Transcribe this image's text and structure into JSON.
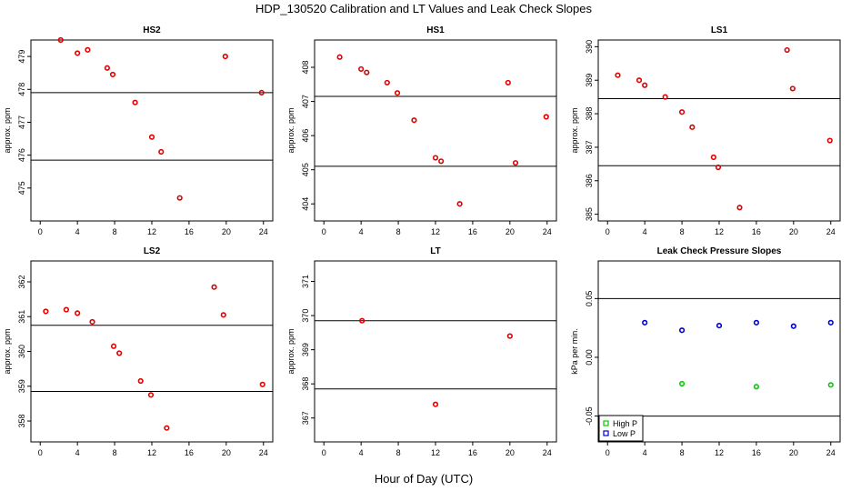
{
  "figure": {
    "title": "HDP_130520  Calibration and LT Values and Leak Check Slopes",
    "xlabel": "Hour of Day (UTC)"
  },
  "chart_data": [
    {
      "id": "hs2",
      "type": "scatter",
      "title": "HS2",
      "ylabel": "approx. ppm",
      "xlim": [
        -1,
        25
      ],
      "ylim": [
        474.0,
        479.5
      ],
      "x_ticks": [
        0,
        4,
        8,
        12,
        16,
        20,
        24
      ],
      "y_ticks": [
        475,
        476,
        477,
        478,
        479
      ],
      "hlines": [
        477.9,
        475.85
      ],
      "series": [
        {
          "color": "#e00000",
          "marker": "circle",
          "x": [
            2.2,
            4.0,
            5.1,
            7.2,
            7.8,
            10.2,
            12.0,
            13.0,
            15.0,
            19.9,
            23.8
          ],
          "y": [
            479.5,
            479.1,
            479.2,
            478.65,
            478.45,
            477.6,
            476.55,
            476.1,
            474.7,
            479.0,
            477.9
          ]
        }
      ]
    },
    {
      "id": "hs1",
      "type": "scatter",
      "title": "HS1",
      "ylabel": "approx. ppm",
      "xlim": [
        -1,
        25
      ],
      "ylim": [
        403.5,
        408.8
      ],
      "x_ticks": [
        0,
        4,
        8,
        12,
        16,
        20,
        24
      ],
      "y_ticks": [
        404,
        405,
        406,
        407,
        408
      ],
      "hlines": [
        407.15,
        405.1
      ],
      "series": [
        {
          "color": "#e00000",
          "marker": "circle",
          "x": [
            1.7,
            4.0,
            4.6,
            6.8,
            7.9,
            9.7,
            12.0,
            12.6,
            14.6,
            19.8,
            20.6,
            23.9
          ],
          "y": [
            408.3,
            407.95,
            407.85,
            407.55,
            407.25,
            406.45,
            405.35,
            405.25,
            404.0,
            407.55,
            405.2,
            406.55
          ]
        }
      ]
    },
    {
      "id": "ls1",
      "type": "scatter",
      "title": "LS1",
      "ylabel": "approx. ppm",
      "xlim": [
        -1,
        25
      ],
      "ylim": [
        384.8,
        390.2
      ],
      "x_ticks": [
        0,
        4,
        8,
        12,
        16,
        20,
        24
      ],
      "y_ticks": [
        385,
        386,
        387,
        388,
        389,
        390
      ],
      "hlines": [
        388.45,
        386.45
      ],
      "series": [
        {
          "color": "#e00000",
          "marker": "circle",
          "x": [
            1.1,
            3.4,
            4.0,
            6.2,
            8.0,
            9.1,
            11.4,
            11.9,
            14.2,
            19.3,
            19.9,
            23.9
          ],
          "y": [
            389.15,
            389.0,
            388.85,
            388.5,
            388.05,
            387.6,
            386.7,
            386.4,
            385.2,
            389.9,
            388.75,
            387.2
          ]
        }
      ]
    },
    {
      "id": "ls2",
      "type": "scatter",
      "title": "LS2",
      "ylabel": "approx. ppm",
      "xlim": [
        -1,
        25
      ],
      "ylim": [
        357.4,
        362.6
      ],
      "x_ticks": [
        0,
        4,
        8,
        12,
        16,
        20,
        24
      ],
      "y_ticks": [
        358,
        359,
        360,
        361,
        362
      ],
      "hlines": [
        360.75,
        358.85
      ],
      "series": [
        {
          "color": "#e00000",
          "marker": "circle",
          "x": [
            0.6,
            2.8,
            4.0,
            5.6,
            7.9,
            8.5,
            10.8,
            11.9,
            13.6,
            18.7,
            19.7,
            23.9
          ],
          "y": [
            361.15,
            361.2,
            361.1,
            360.85,
            360.15,
            359.95,
            359.15,
            358.75,
            357.8,
            361.85,
            361.05,
            359.05
          ]
        }
      ]
    },
    {
      "id": "lt",
      "type": "scatter",
      "title": "LT",
      "ylabel": "approx. ppm",
      "xlim": [
        -1,
        25
      ],
      "ylim": [
        366.3,
        371.6
      ],
      "x_ticks": [
        0,
        4,
        8,
        12,
        16,
        20,
        24
      ],
      "y_ticks": [
        367,
        368,
        369,
        370,
        371
      ],
      "hlines": [
        369.85,
        367.85
      ],
      "series": [
        {
          "color": "#e00000",
          "marker": "circle",
          "x": [
            4.1,
            12.0,
            20.0
          ],
          "y": [
            369.85,
            367.4,
            369.4
          ]
        }
      ]
    },
    {
      "id": "leak",
      "type": "scatter",
      "title": "Leak Check Pressure Slopes",
      "ylabel": "kPa per min.",
      "xlim": [
        -1,
        25
      ],
      "ylim": [
        -0.072,
        0.082
      ],
      "x_ticks": [
        0,
        4,
        8,
        12,
        16,
        20,
        24
      ],
      "y_ticks": [
        -0.05,
        0.0,
        0.05
      ],
      "y_tick_labels": [
        "-0.05",
        "0.00",
        "0.05"
      ],
      "hlines": [
        0.05,
        -0.05
      ],
      "legend": {
        "position": "bottom-left",
        "entries": [
          "High P",
          "Low P"
        ]
      },
      "series": [
        {
          "name": "High P",
          "color": "#00cc00",
          "marker": "circle",
          "x": [
            8,
            16,
            24
          ],
          "y": [
            -0.0225,
            -0.025,
            -0.0235
          ]
        },
        {
          "name": "Low P",
          "color": "#0000cc",
          "marker": "circle",
          "x": [
            4,
            8,
            12,
            16,
            20,
            24
          ],
          "y": [
            0.0295,
            0.023,
            0.027,
            0.0295,
            0.0265,
            0.0295
          ]
        }
      ]
    }
  ]
}
